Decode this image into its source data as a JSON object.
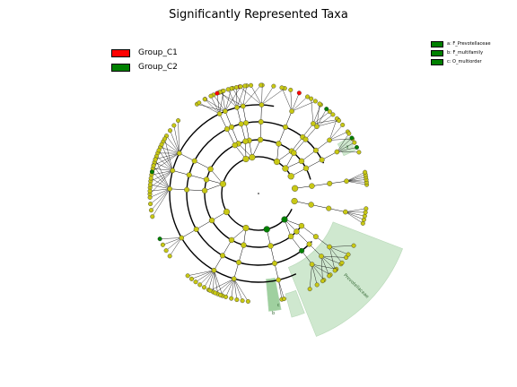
{
  "title": "Significantly Represented Taxa",
  "legend": [
    {
      "label": "Group_C1",
      "color": "#ff0000"
    },
    {
      "label": "Group_C2",
      "color": "#008000"
    }
  ],
  "markers": [
    {
      "label": "a: F_Prevotellaceae"
    },
    {
      "label": "b: F_multifamily"
    },
    {
      "label": "c: O_multiorder"
    }
  ],
  "clades": [
    {
      "label": "Prevotellaceae",
      "letter": "a"
    },
    {
      "letter": "b"
    },
    {
      "letter": "c"
    }
  ],
  "colors": {
    "node_default": "#c8c814",
    "group_c1": "#ff0000",
    "group_c2": "#008000",
    "highlight": "#cfe8cf"
  }
}
